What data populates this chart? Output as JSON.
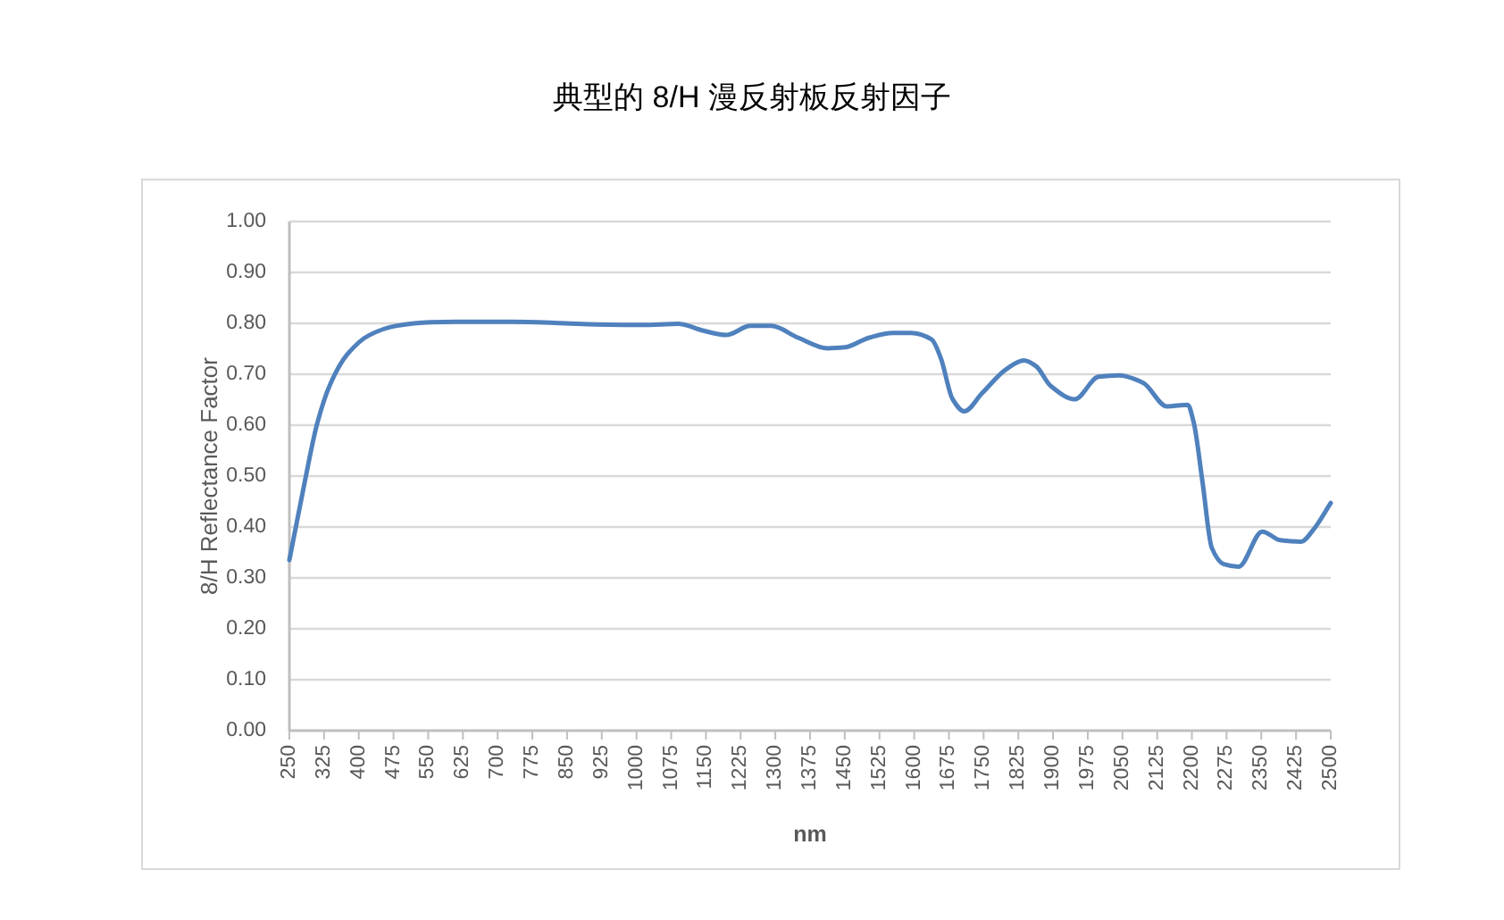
{
  "chart_data": {
    "type": "line",
    "title": "典型的 8/H 漫反射板反射因子",
    "xlabel": "nm",
    "ylabel": "8/H Reflectance Factor",
    "x": [
      250,
      282,
      310,
      338,
      376,
      423,
      480,
      555,
      628,
      731,
      847,
      911,
      1014,
      1091,
      1143,
      1194,
      1246,
      1291,
      1349,
      1413,
      1451,
      1503,
      1554,
      1593,
      1638,
      1657,
      1683,
      1708,
      1747,
      1799,
      1837,
      1863,
      1895,
      1947,
      1998,
      2043,
      2095,
      2146,
      2191,
      2204,
      2223,
      2243,
      2269,
      2301,
      2352,
      2391,
      2436,
      2462,
      2500
    ],
    "series": [
      {
        "color": "#4f81bd",
        "values": [
          0.335,
          0.483,
          0.603,
          0.68,
          0.74,
          0.777,
          0.795,
          0.802,
          0.803,
          0.803,
          0.8,
          0.798,
          0.797,
          0.799,
          0.786,
          0.777,
          0.795,
          0.795,
          0.772,
          0.751,
          0.753,
          0.772,
          0.781,
          0.781,
          0.768,
          0.733,
          0.651,
          0.627,
          0.663,
          0.71,
          0.727,
          0.716,
          0.677,
          0.651,
          0.695,
          0.698,
          0.683,
          0.637,
          0.64,
          0.605,
          0.488,
          0.359,
          0.327,
          0.322,
          0.391,
          0.374,
          0.371,
          0.394,
          0.447
        ]
      }
    ],
    "xlim": [
      250,
      2500
    ],
    "xticks": [
      250,
      325,
      400,
      475,
      550,
      625,
      700,
      775,
      850,
      925,
      1000,
      1075,
      1150,
      1225,
      1300,
      1375,
      1450,
      1525,
      1600,
      1675,
      1750,
      1825,
      1900,
      1975,
      2050,
      2125,
      2200,
      2275,
      2350,
      2425,
      2500
    ],
    "ylim": [
      0,
      1
    ],
    "yticks": [
      {
        "value": 0,
        "label": "0.00"
      },
      {
        "value": 0.1,
        "label": "0.10"
      },
      {
        "value": 0.2,
        "label": "0.20"
      },
      {
        "value": 0.3,
        "label": "0.30"
      },
      {
        "value": 0.4,
        "label": "0.40"
      },
      {
        "value": 0.5,
        "label": "0.50"
      },
      {
        "value": 0.6,
        "label": "0.60"
      },
      {
        "value": 0.7,
        "label": "0.70"
      },
      {
        "value": 0.8,
        "label": "0.80"
      },
      {
        "value": 0.9,
        "label": "0.90"
      },
      {
        "value": 1,
        "label": "1.00"
      }
    ],
    "grid": "y",
    "line_style": "solid"
  }
}
